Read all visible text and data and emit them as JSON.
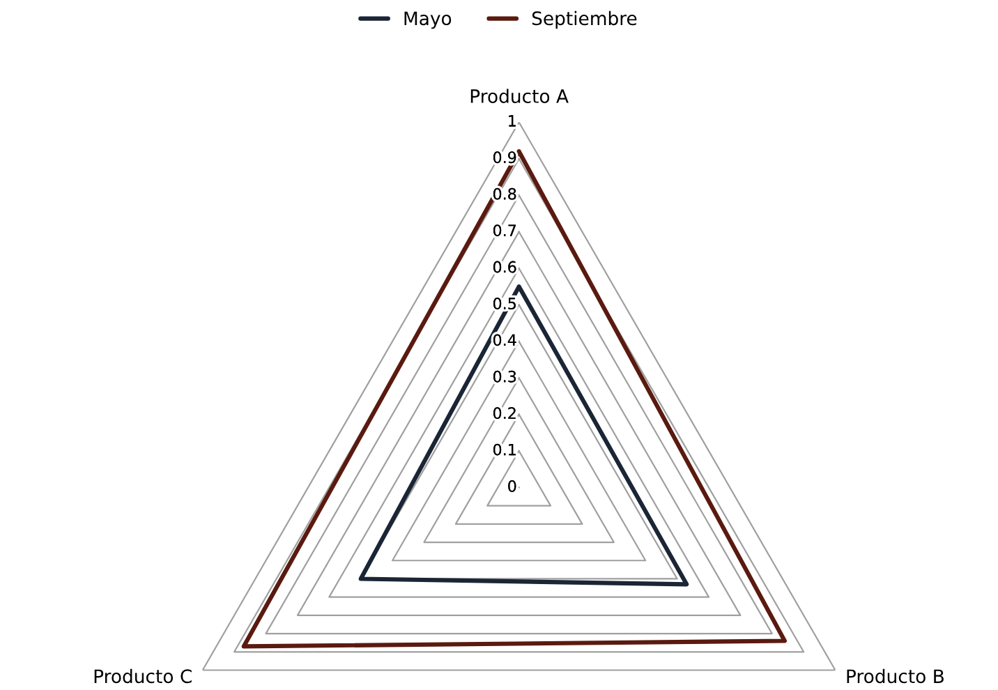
{
  "chart_data": {
    "type": "radar",
    "categories": [
      "Producto A",
      "Producto B",
      "Producto C"
    ],
    "series": [
      {
        "name": "Mayo",
        "color": "#1a2535",
        "values": [
          0.55,
          0.53,
          0.5
        ]
      },
      {
        "name": "Septiembre",
        "color": "#5a1a10",
        "values": [
          0.92,
          0.84,
          0.87
        ]
      }
    ],
    "ylim": [
      0,
      1
    ],
    "yticks": [
      0,
      0.1,
      0.2,
      0.3,
      0.4,
      0.5,
      0.6,
      0.7,
      0.8,
      0.9,
      1
    ],
    "grid": true,
    "legend": "top",
    "line_style": "solid",
    "marker": "none"
  }
}
